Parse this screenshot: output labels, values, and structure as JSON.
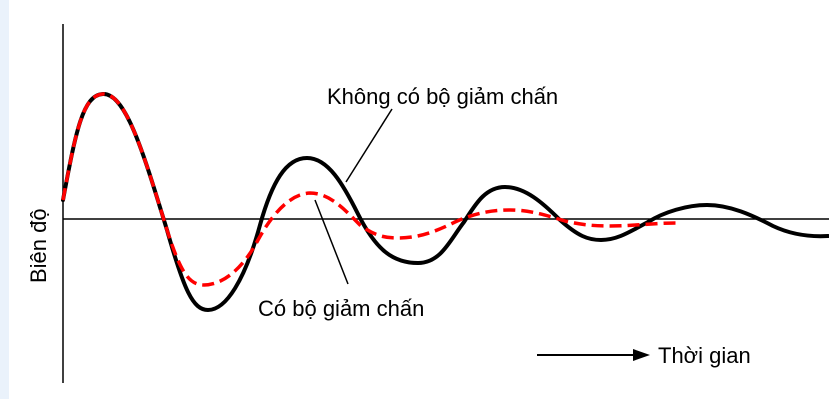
{
  "labels": {
    "undamped": "Không có bộ giảm chấn",
    "damped": "Có bộ giảm chấn",
    "time": "Thời gian",
    "amplitude": "Biên độ"
  },
  "curves": {
    "undamped": {
      "color": "#000000",
      "style": "solid"
    },
    "damped": {
      "color": "#ff0000",
      "style": "dashed"
    }
  }
}
